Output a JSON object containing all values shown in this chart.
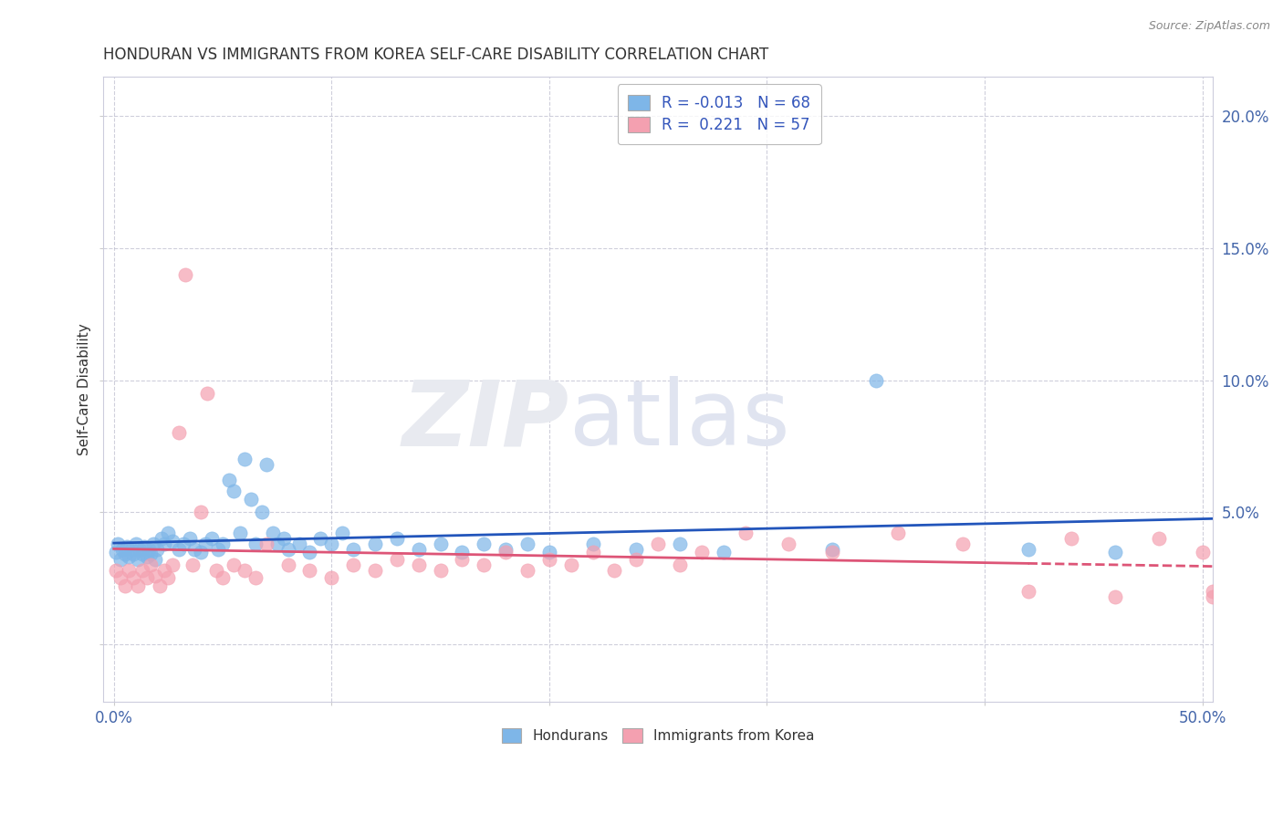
{
  "title": "HONDURAN VS IMMIGRANTS FROM KOREA SELF-CARE DISABILITY CORRELATION CHART",
  "source": "Source: ZipAtlas.com",
  "ylabel": "Self-Care Disability",
  "honduran_color": "#7EB6E8",
  "korean_color": "#F4A0B0",
  "honduran_line_color": "#2255BB",
  "korean_line_color": "#DD5577",
  "honduran_R": -0.013,
  "honduran_N": 68,
  "korean_R": 0.221,
  "korean_N": 57,
  "xlim": [
    -0.005,
    0.505
  ],
  "ylim": [
    -0.022,
    0.215
  ],
  "honduran_scatter_x": [
    0.001,
    0.002,
    0.003,
    0.004,
    0.005,
    0.006,
    0.007,
    0.008,
    0.009,
    0.01,
    0.011,
    0.012,
    0.013,
    0.014,
    0.015,
    0.016,
    0.017,
    0.018,
    0.019,
    0.02,
    0.022,
    0.023,
    0.025,
    0.027,
    0.03,
    0.032,
    0.035,
    0.037,
    0.04,
    0.042,
    0.045,
    0.048,
    0.05,
    0.053,
    0.055,
    0.058,
    0.06,
    0.063,
    0.065,
    0.068,
    0.07,
    0.073,
    0.075,
    0.078,
    0.08,
    0.085,
    0.09,
    0.095,
    0.1,
    0.105,
    0.11,
    0.12,
    0.13,
    0.14,
    0.15,
    0.16,
    0.17,
    0.18,
    0.19,
    0.2,
    0.22,
    0.24,
    0.26,
    0.28,
    0.33,
    0.35,
    0.42,
    0.46
  ],
  "honduran_scatter_y": [
    0.035,
    0.038,
    0.032,
    0.036,
    0.034,
    0.037,
    0.033,
    0.036,
    0.034,
    0.038,
    0.032,
    0.036,
    0.034,
    0.037,
    0.033,
    0.036,
    0.034,
    0.038,
    0.032,
    0.036,
    0.04,
    0.038,
    0.042,
    0.039,
    0.036,
    0.038,
    0.04,
    0.036,
    0.035,
    0.038,
    0.04,
    0.036,
    0.038,
    0.062,
    0.058,
    0.042,
    0.07,
    0.055,
    0.038,
    0.05,
    0.068,
    0.042,
    0.038,
    0.04,
    0.036,
    0.038,
    0.035,
    0.04,
    0.038,
    0.042,
    0.036,
    0.038,
    0.04,
    0.036,
    0.038,
    0.035,
    0.038,
    0.036,
    0.038,
    0.035,
    0.038,
    0.036,
    0.038,
    0.035,
    0.036,
    0.1,
    0.036,
    0.035
  ],
  "korean_scatter_x": [
    0.001,
    0.003,
    0.005,
    0.007,
    0.009,
    0.011,
    0.013,
    0.015,
    0.017,
    0.019,
    0.021,
    0.023,
    0.025,
    0.027,
    0.03,
    0.033,
    0.036,
    0.04,
    0.043,
    0.047,
    0.05,
    0.055,
    0.06,
    0.065,
    0.07,
    0.08,
    0.09,
    0.1,
    0.11,
    0.12,
    0.13,
    0.14,
    0.15,
    0.16,
    0.17,
    0.18,
    0.19,
    0.2,
    0.21,
    0.22,
    0.23,
    0.24,
    0.25,
    0.26,
    0.27,
    0.29,
    0.31,
    0.33,
    0.36,
    0.39,
    0.42,
    0.44,
    0.46,
    0.48,
    0.5,
    0.505,
    0.505
  ],
  "korean_scatter_y": [
    0.028,
    0.025,
    0.022,
    0.028,
    0.025,
    0.022,
    0.028,
    0.025,
    0.03,
    0.026,
    0.022,
    0.028,
    0.025,
    0.03,
    0.08,
    0.14,
    0.03,
    0.05,
    0.095,
    0.028,
    0.025,
    0.03,
    0.028,
    0.025,
    0.038,
    0.03,
    0.028,
    0.025,
    0.03,
    0.028,
    0.032,
    0.03,
    0.028,
    0.032,
    0.03,
    0.035,
    0.028,
    0.032,
    0.03,
    0.035,
    0.028,
    0.032,
    0.038,
    0.03,
    0.035,
    0.042,
    0.038,
    0.035,
    0.042,
    0.038,
    0.02,
    0.04,
    0.018,
    0.04,
    0.035,
    0.02,
    0.018
  ]
}
